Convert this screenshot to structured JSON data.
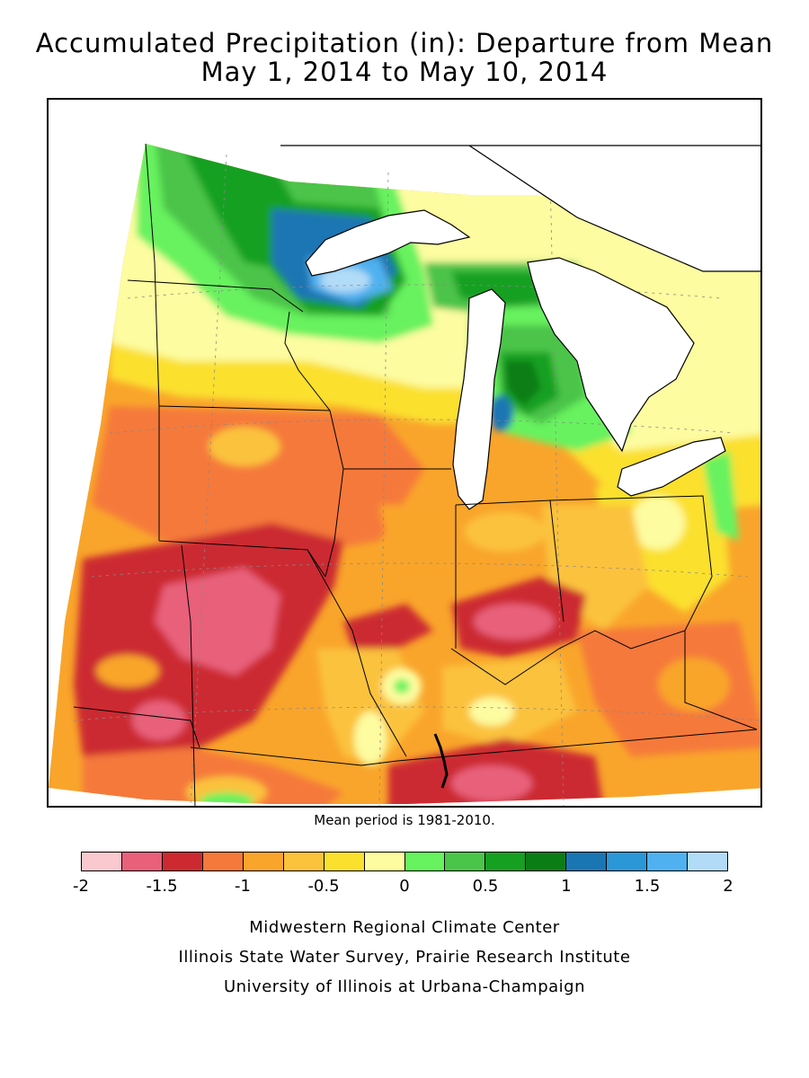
{
  "title": {
    "line1": "Accumulated Precipitation (in): Departure from Mean",
    "line2": "May 1, 2014 to May 10, 2014"
  },
  "mean_note": "Mean period is 1981-2010.",
  "legend": {
    "colors": [
      "#f9c9cf",
      "#e8607a",
      "#cc2a30",
      "#f5793a",
      "#f9a52b",
      "#fbc23c",
      "#fbe02d",
      "#fdfca0",
      "#67f25f",
      "#4bc44a",
      "#16a021",
      "#0a7d14",
      "#1a76b3",
      "#2a97d6",
      "#4fb1ef",
      "#b2dbf7"
    ],
    "tick_values": [
      -2,
      -1.5,
      -1,
      -0.5,
      0,
      0.5,
      1,
      1.5,
      2
    ],
    "tick_labels": [
      "-2",
      "-1.5",
      "-1",
      "-0.5",
      "0",
      "0.5",
      "1",
      "1.5",
      "2"
    ]
  },
  "credits": {
    "line1": "Midwestern Regional Climate Center",
    "line2": "Illinois State Water Survey, Prairie Research Institute",
    "line3": "University of Illinois at Urbana-Champaign"
  }
}
